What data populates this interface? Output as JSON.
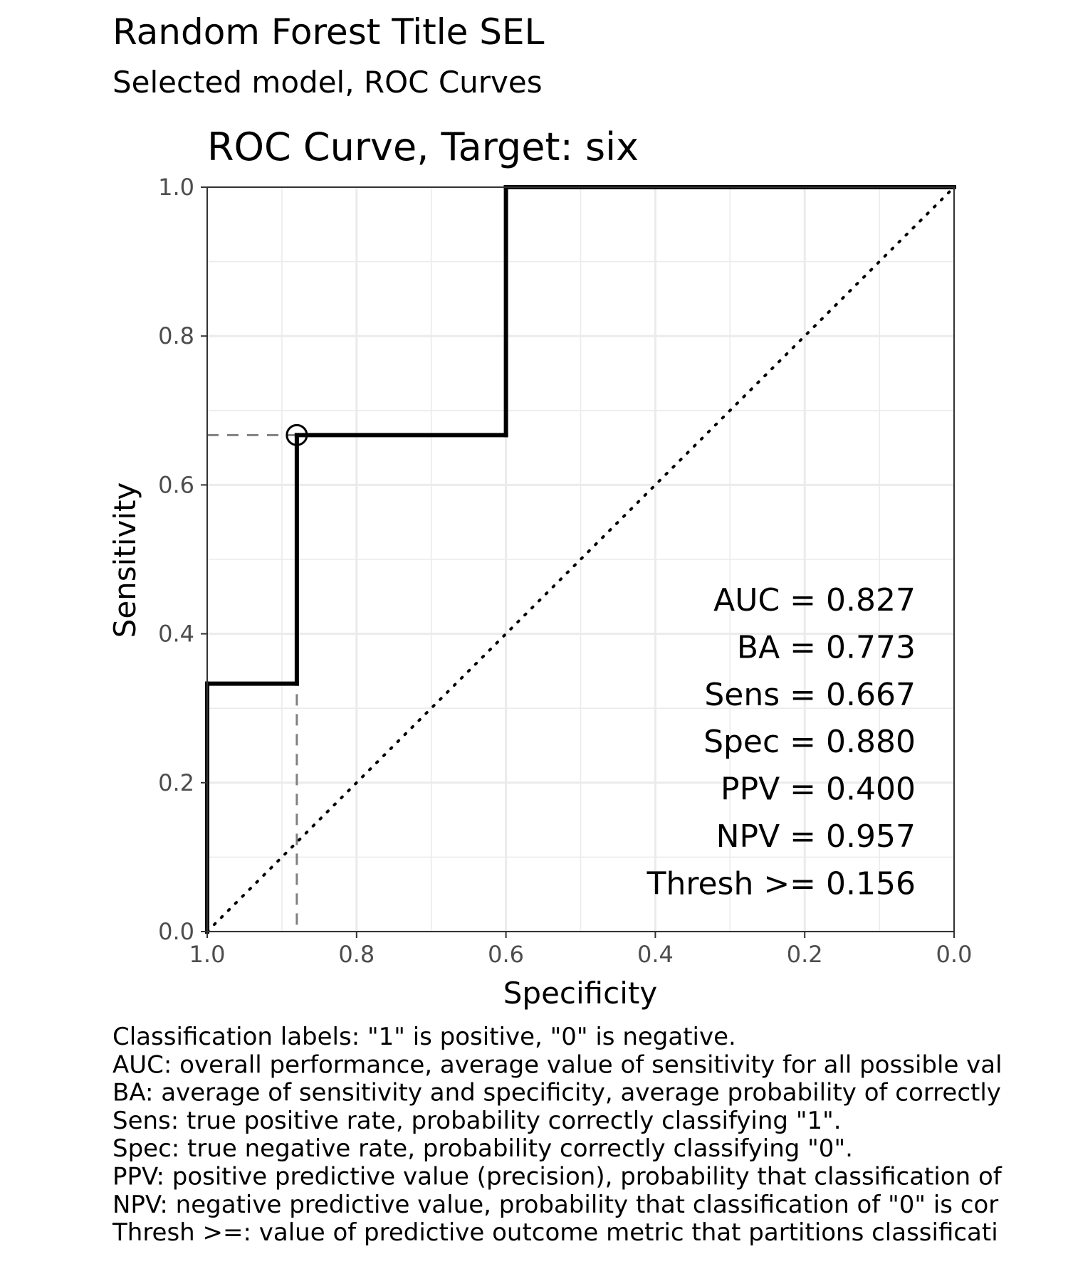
{
  "title": "Random Forest Title SEL",
  "subtitle": "Selected model, ROC Curves",
  "chart_data": {
    "type": "line",
    "title": "ROC Curve, Target:  six",
    "xlabel": "Specificity",
    "ylabel": "Sensitivity",
    "xlim": [
      1.0,
      0.0
    ],
    "ylim": [
      0.0,
      1.0
    ],
    "x_reversed": true,
    "grid": true,
    "x_ticks": [
      "1.0",
      "0.8",
      "0.6",
      "0.4",
      "0.2",
      "0.0"
    ],
    "y_ticks": [
      "0.0",
      "0.2",
      "0.4",
      "0.6",
      "0.8",
      "1.0"
    ],
    "series": [
      {
        "style": "solid",
        "color": "#000000",
        "points": [
          {
            "specificity": 1.0,
            "sensitivity": 0.0
          },
          {
            "specificity": 1.0,
            "sensitivity": 0.333
          },
          {
            "specificity": 0.88,
            "sensitivity": 0.333
          },
          {
            "specificity": 0.88,
            "sensitivity": 0.667
          },
          {
            "specificity": 0.6,
            "sensitivity": 0.667
          },
          {
            "specificity": 0.6,
            "sensitivity": 1.0
          },
          {
            "specificity": 0.0,
            "sensitivity": 1.0
          }
        ]
      }
    ],
    "reference_line": {
      "style": "dotted",
      "from": {
        "specificity": 1.0,
        "sensitivity": 0.0
      },
      "to": {
        "specificity": 0.0,
        "sensitivity": 1.0
      }
    },
    "threshold_point": {
      "specificity": 0.88,
      "sensitivity": 0.667,
      "guide_color": "#7f7f7f",
      "guide_style": "dashed"
    },
    "annotations": [
      "AUC = 0.827",
      "BA = 0.773",
      "Sens = 0.667",
      "Spec = 0.880",
      "PPV = 0.400",
      "NPV = 0.957",
      "Thresh >= 0.156"
    ]
  },
  "caption": [
    "Classification labels:  \"1\" is positive, \"0\" is negative.",
    "AUC: overall performance, average value of sensitivity for all possible val",
    "BA: average of sensitivity and specificity, average probability of correctly",
    "Sens: true positive rate, probability correctly classifying \"1\".",
    "Spec: true negative rate, probability correctly classifying \"0\".",
    "PPV: positive predictive value (precision), probability that classification of",
    "NPV: negative predictive value, probability that classification of \"0\" is cor",
    "Thresh >=: value of predictive outcome metric that partitions classificati"
  ],
  "colors": {
    "grid": "#ebebeb",
    "panel_border": "#333333",
    "tick_text": "#4d4d4d",
    "curve": "#000000",
    "guide": "#7f7f7f"
  }
}
